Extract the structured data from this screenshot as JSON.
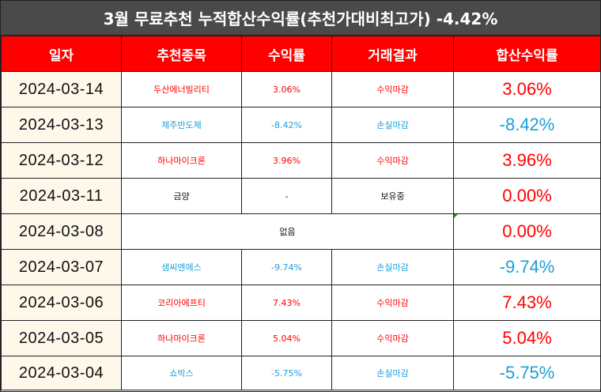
{
  "title": "3월 무료추천 누적합산수익률(추천가대비최고가) -4.42%",
  "headers": [
    "일자",
    "추천종목",
    "수익률",
    "거래결과",
    "합산수익률"
  ],
  "colors": {
    "title_bg": "#4a4a4a",
    "header_bg": "#ff0000",
    "date_bg": "#fdf8ea",
    "profit": "#ff0000",
    "loss": "#1a9fd6",
    "neutral": "#111111"
  },
  "rows": [
    {
      "date": "2024-03-14",
      "stock": "두산에너빌리티",
      "return": "3.06%",
      "result": "수익마감",
      "cumulative": "3.06%",
      "tone": "profit"
    },
    {
      "date": "2024-03-13",
      "stock": "제주반도체",
      "return": "-8.42%",
      "result": "손실마감",
      "cumulative": "-8.42%",
      "tone": "loss"
    },
    {
      "date": "2024-03-12",
      "stock": "하나마이크론",
      "return": "3.96%",
      "result": "수익마감",
      "cumulative": "3.96%",
      "tone": "profit"
    },
    {
      "date": "2024-03-11",
      "stock": "금양",
      "return": "-",
      "result": "보유중",
      "cumulative": "0.00%",
      "tone": "hold"
    },
    {
      "date": "2024-03-08",
      "merged_text": "없음",
      "cumulative": "0.00%",
      "tone": "none"
    },
    {
      "date": "2024-03-07",
      "stock": "샘씨엔에스",
      "return": "-9.74%",
      "result": "손실마감",
      "cumulative": "-9.74%",
      "tone": "loss"
    },
    {
      "date": "2024-03-06",
      "stock": "코리아에프티",
      "return": "7.43%",
      "result": "수익마감",
      "cumulative": "7.43%",
      "tone": "profit"
    },
    {
      "date": "2024-03-05",
      "stock": "하나마이크론",
      "return": "5.04%",
      "result": "수익마감",
      "cumulative": "5.04%",
      "tone": "profit"
    },
    {
      "date": "2024-03-04",
      "stock": "쇼박스",
      "return": "-5.75%",
      "result": "손실마감",
      "cumulative": "-5.75%",
      "tone": "loss"
    }
  ]
}
